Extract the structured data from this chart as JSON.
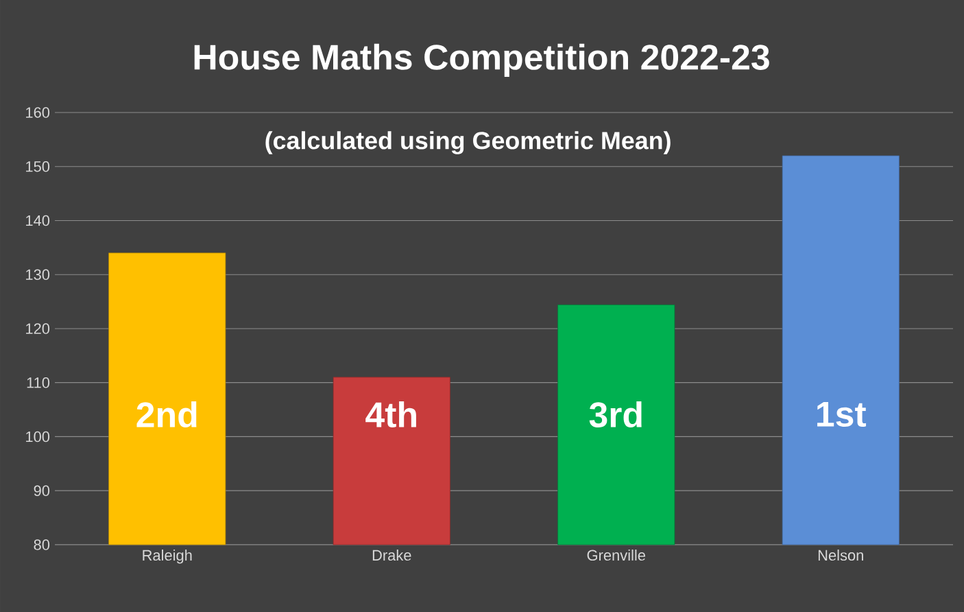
{
  "chart_data": {
    "type": "bar",
    "title": "House Maths Competition 2022-23",
    "subtitle": "(calculated using Geometric Mean)",
    "categories": [
      "Raleigh",
      "Drake",
      "Grenville",
      "Nelson"
    ],
    "values": [
      134,
      111,
      124.4,
      152
    ],
    "colors": [
      "#ffc000",
      "#c83c3c",
      "#00b050",
      "#5b8ed6"
    ],
    "annotations": [
      "2nd",
      "4th",
      "3rd",
      "1st"
    ],
    "ylim": [
      80,
      160
    ],
    "yticks": [
      80,
      90,
      100,
      110,
      120,
      130,
      140,
      150,
      160
    ],
    "grid": "y"
  }
}
